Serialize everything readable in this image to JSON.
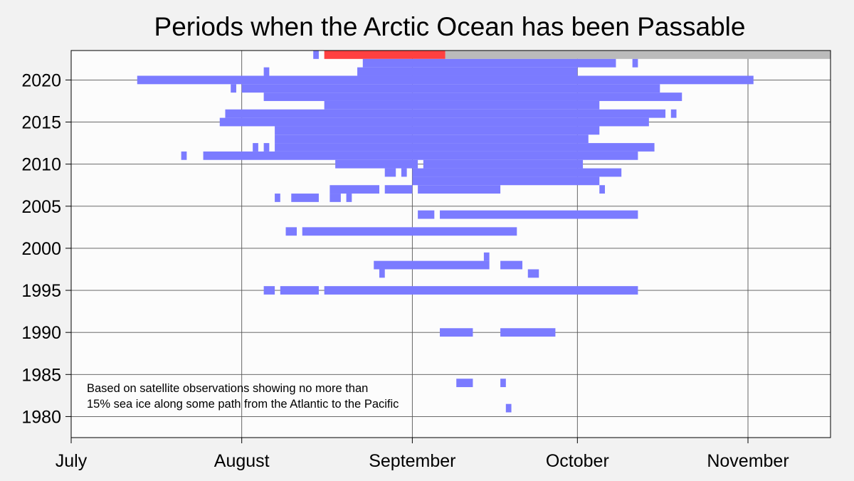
{
  "chart_data": {
    "type": "bar",
    "title": "Periods when the Arctic Ocean has been Passable",
    "annotation_lines": [
      "Based on satellite observations showing no more than",
      "15% sea ice along some path from the Atlantic to the Pacific"
    ],
    "x_ticks": [
      {
        "label": "July",
        "date": "07-01"
      },
      {
        "label": "August",
        "date": "08-01"
      },
      {
        "label": "September",
        "date": "09-01"
      },
      {
        "label": "October",
        "date": "10-01"
      },
      {
        "label": "November",
        "date": "11-01"
      }
    ],
    "xlim": [
      "07-01",
      "11-16"
    ],
    "y_ticks": [
      1980,
      1985,
      1990,
      1995,
      2000,
      2005,
      2010,
      2015,
      2020
    ],
    "ylim": [
      1977.5,
      2023.5
    ],
    "grid": true,
    "colors": {
      "passable": "#7b7bff",
      "current_year_passable": "#ff4040",
      "current_year_pending": "#bbbbbb",
      "plot_background": "#fcfcfc",
      "page_background": "#f2f2f2",
      "grid": "#555555"
    },
    "series": [
      {
        "year": 2023,
        "periods": [
          [
            "08-14",
            "08-15"
          ],
          [
            "08-16",
            "09-07",
            "current"
          ],
          [
            "09-07",
            "11-16",
            "pending"
          ]
        ]
      },
      {
        "year": 2022,
        "periods": [
          [
            "08-23",
            "10-08"
          ],
          [
            "10-11",
            "10-12"
          ]
        ]
      },
      {
        "year": 2021,
        "periods": [
          [
            "08-05",
            "08-06"
          ],
          [
            "08-22",
            "10-01"
          ]
        ]
      },
      {
        "year": 2020,
        "periods": [
          [
            "07-13",
            "11-02"
          ]
        ]
      },
      {
        "year": 2019,
        "periods": [
          [
            "07-30",
            "07-31"
          ],
          [
            "08-01",
            "10-16"
          ]
        ]
      },
      {
        "year": 2018,
        "periods": [
          [
            "08-05",
            "10-20"
          ]
        ]
      },
      {
        "year": 2017,
        "periods": [
          [
            "08-16",
            "10-05"
          ]
        ]
      },
      {
        "year": 2016,
        "periods": [
          [
            "07-29",
            "10-17"
          ],
          [
            "10-18",
            "10-19"
          ]
        ]
      },
      {
        "year": 2015,
        "periods": [
          [
            "07-28",
            "10-14"
          ]
        ]
      },
      {
        "year": 2014,
        "periods": [
          [
            "08-07",
            "10-05"
          ]
        ]
      },
      {
        "year": 2013,
        "periods": [
          [
            "08-07",
            "08-26"
          ],
          [
            "08-26",
            "10-03"
          ]
        ]
      },
      {
        "year": 2012,
        "periods": [
          [
            "08-03",
            "08-04"
          ],
          [
            "08-05",
            "08-06"
          ],
          [
            "08-07",
            "10-15"
          ]
        ]
      },
      {
        "year": 2011,
        "periods": [
          [
            "07-21",
            "07-22"
          ],
          [
            "07-25",
            "10-12"
          ]
        ]
      },
      {
        "year": 2010,
        "periods": [
          [
            "08-18",
            "09-02"
          ],
          [
            "09-03",
            "10-02"
          ]
        ]
      },
      {
        "year": 2009,
        "periods": [
          [
            "08-27",
            "08-29"
          ],
          [
            "08-30",
            "08-31"
          ],
          [
            "09-01",
            "10-09"
          ]
        ]
      },
      {
        "year": 2008,
        "periods": [
          [
            "09-01",
            "10-05"
          ]
        ]
      },
      {
        "year": 2007,
        "periods": [
          [
            "08-17",
            "08-26"
          ],
          [
            "08-27",
            "09-01"
          ],
          [
            "09-02",
            "09-17"
          ],
          [
            "10-05",
            "10-06"
          ]
        ]
      },
      {
        "year": 2006,
        "periods": [
          [
            "08-07",
            "08-08"
          ],
          [
            "08-10",
            "08-15"
          ],
          [
            "08-17",
            "08-19"
          ],
          [
            "08-20",
            "08-21"
          ]
        ]
      },
      {
        "year": 2004,
        "periods": [
          [
            "09-02",
            "09-05"
          ],
          [
            "09-06",
            "10-12"
          ]
        ]
      },
      {
        "year": 2002,
        "periods": [
          [
            "08-09",
            "08-11"
          ],
          [
            "08-12",
            "09-20"
          ]
        ]
      },
      {
        "year": 1999,
        "periods": [
          [
            "09-14",
            "09-15"
          ]
        ]
      },
      {
        "year": 1998,
        "periods": [
          [
            "08-25",
            "09-15"
          ],
          [
            "09-17",
            "09-21"
          ]
        ]
      },
      {
        "year": 1997,
        "periods": [
          [
            "08-26",
            "08-27"
          ],
          [
            "09-22",
            "09-24"
          ]
        ]
      },
      {
        "year": 1995,
        "periods": [
          [
            "08-05",
            "08-07"
          ],
          [
            "08-08",
            "08-15"
          ],
          [
            "08-16",
            "10-12"
          ]
        ]
      },
      {
        "year": 1990,
        "periods": [
          [
            "09-06",
            "09-12"
          ],
          [
            "09-17",
            "09-27"
          ]
        ]
      },
      {
        "year": 1984,
        "periods": [
          [
            "09-09",
            "09-12"
          ],
          [
            "09-17",
            "09-18"
          ]
        ]
      },
      {
        "year": 1981,
        "periods": [
          [
            "09-18",
            "09-19"
          ]
        ]
      }
    ]
  }
}
